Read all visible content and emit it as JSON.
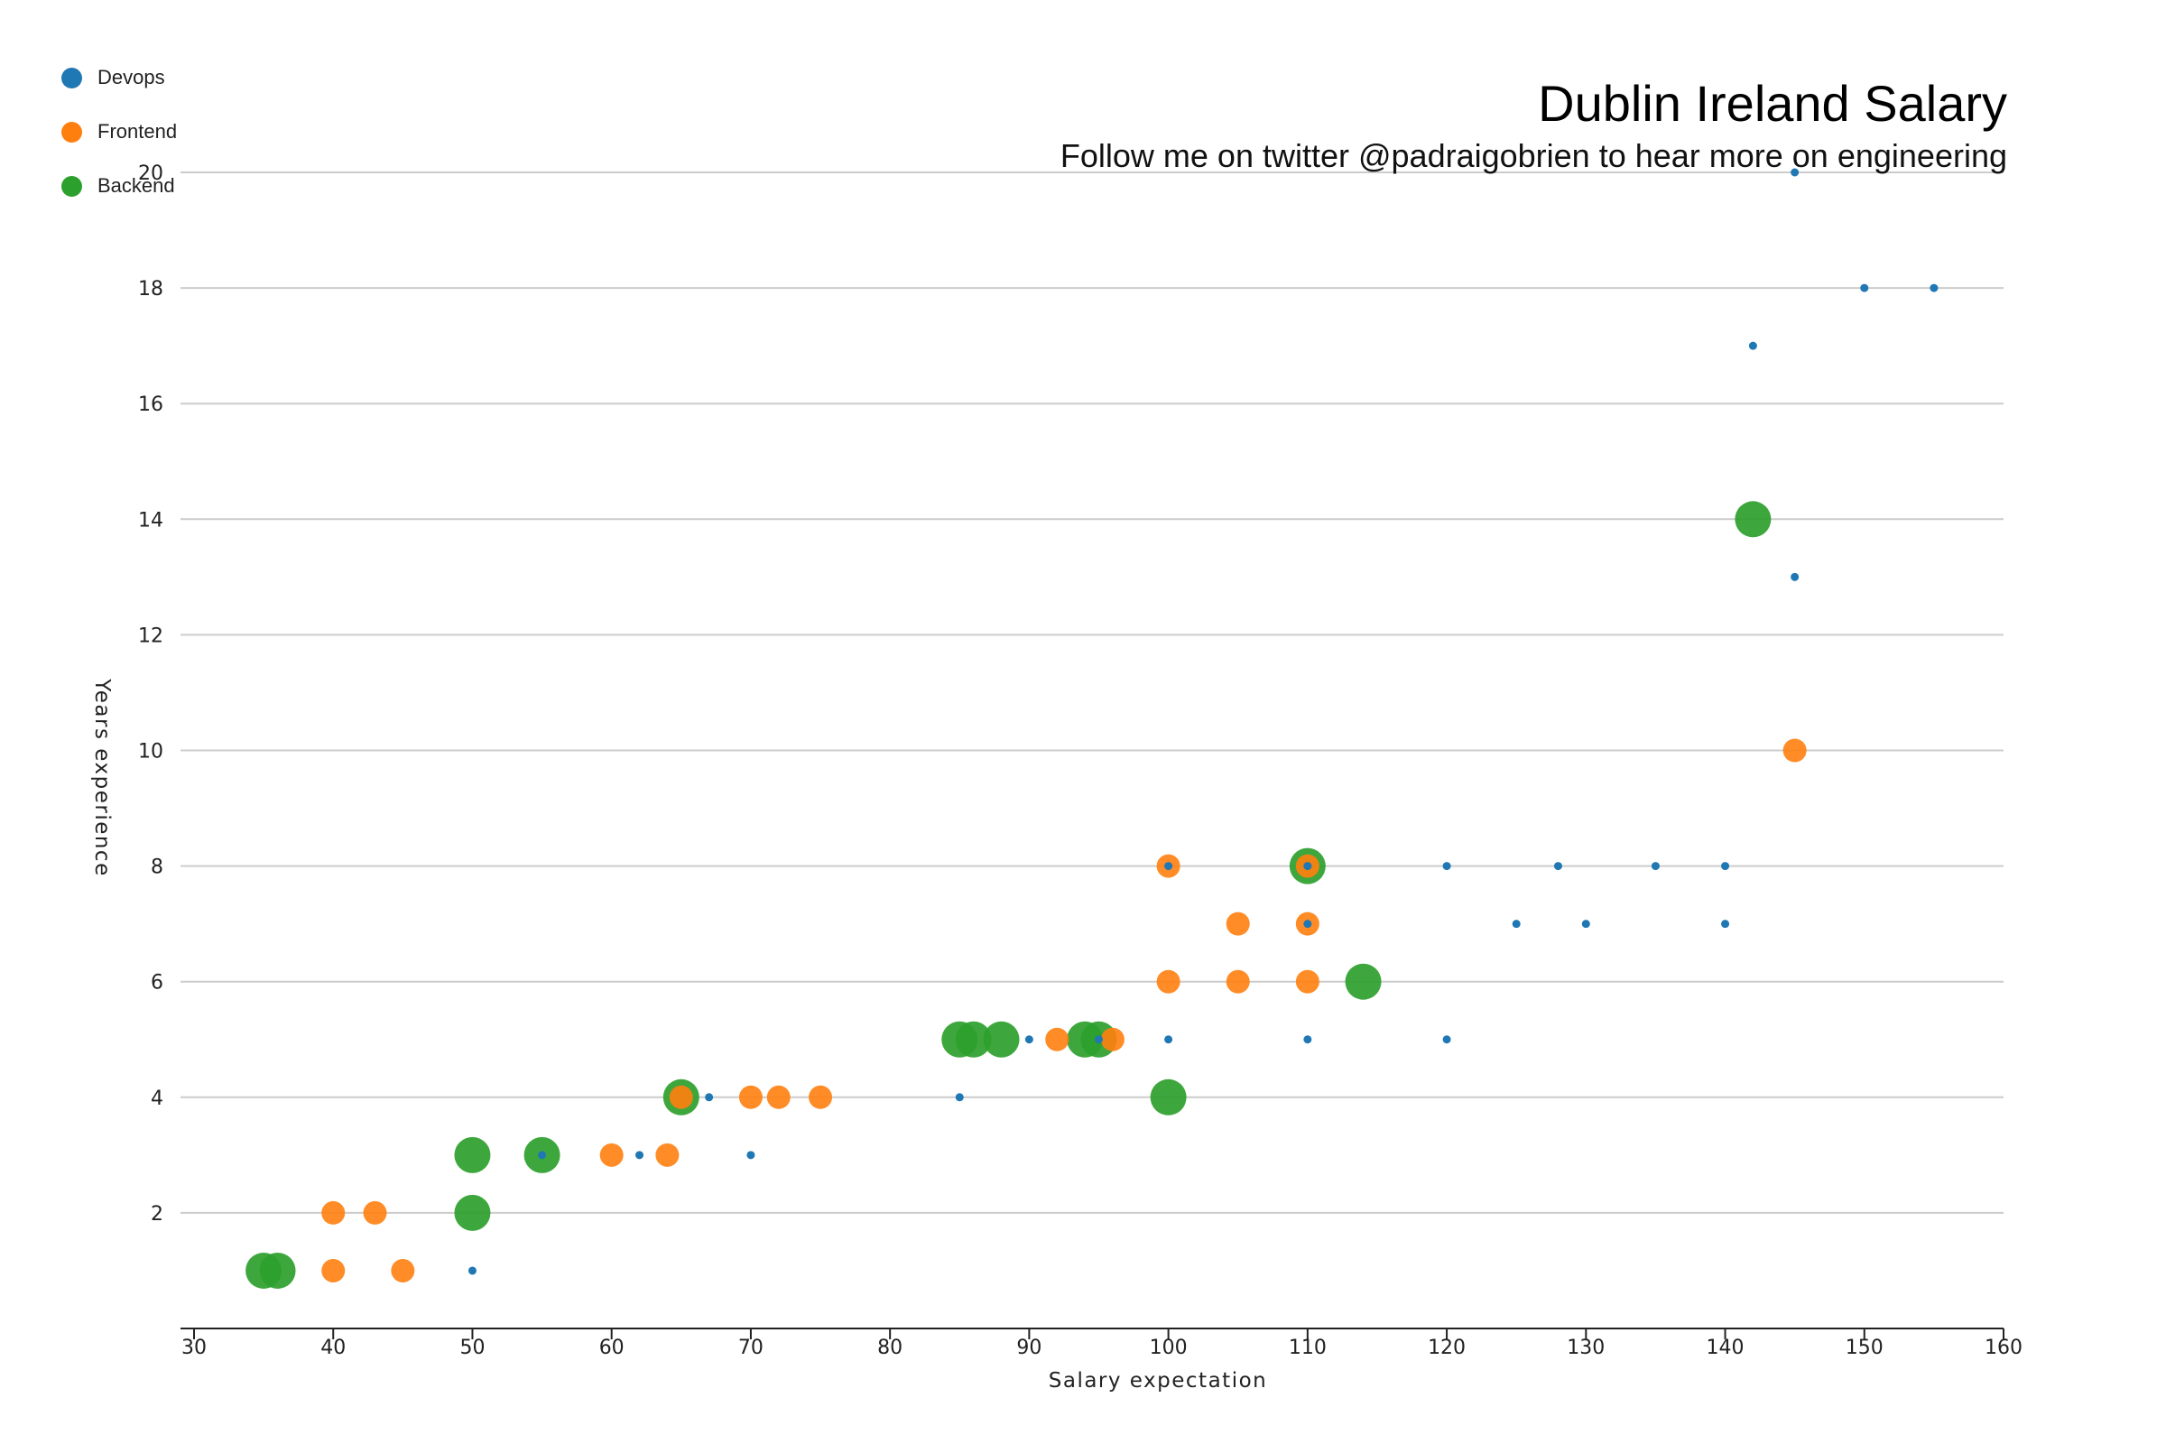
{
  "chart_data": {
    "type": "scatter",
    "title": "Dublin Ireland Salary",
    "subtitle": "Follow me on twitter @padraigobrien to hear more on engineering",
    "xlabel": "Salary expectation",
    "ylabel": "Years experience",
    "xlim": [
      30,
      160
    ],
    "ylim": [
      0,
      20
    ],
    "x_ticks": [
      30,
      40,
      50,
      60,
      70,
      80,
      90,
      100,
      110,
      120,
      130,
      140,
      150,
      160
    ],
    "y_ticks": [
      2,
      4,
      6,
      8,
      10,
      12,
      14,
      16,
      18,
      20
    ],
    "grid": "horizontal",
    "legend": "top-left",
    "series": [
      {
        "name": "Devops",
        "color": "#1f77b4",
        "marker_size": "small",
        "points": [
          [
            145,
            20
          ],
          [
            150,
            18
          ],
          [
            155,
            18
          ],
          [
            142,
            17
          ],
          [
            145,
            13
          ],
          [
            100,
            8
          ],
          [
            110,
            8
          ],
          [
            120,
            8
          ],
          [
            128,
            8
          ],
          [
            135,
            8
          ],
          [
            140,
            8
          ],
          [
            110,
            7
          ],
          [
            125,
            7
          ],
          [
            130,
            7
          ],
          [
            140,
            7
          ],
          [
            90,
            5
          ],
          [
            95,
            5
          ],
          [
            100,
            5
          ],
          [
            110,
            5
          ],
          [
            120,
            5
          ],
          [
            67,
            4
          ],
          [
            85,
            4
          ],
          [
            55,
            3
          ],
          [
            62,
            3
          ],
          [
            70,
            3
          ],
          [
            50,
            1
          ]
        ]
      },
      {
        "name": "Frontend",
        "color": "#ff7f0e",
        "marker_size": "medium",
        "points": [
          [
            145,
            10
          ],
          [
            100,
            8
          ],
          [
            110,
            8
          ],
          [
            105,
            7
          ],
          [
            110,
            7
          ],
          [
            100,
            6
          ],
          [
            105,
            6
          ],
          [
            110,
            6
          ],
          [
            92,
            5
          ],
          [
            96,
            5
          ],
          [
            65,
            4
          ],
          [
            70,
            4
          ],
          [
            72,
            4
          ],
          [
            75,
            4
          ],
          [
            60,
            3
          ],
          [
            64,
            3
          ],
          [
            40,
            2
          ],
          [
            43,
            2
          ],
          [
            40,
            1
          ],
          [
            45,
            1
          ]
        ]
      },
      {
        "name": "Backend",
        "color": "#2ca02c",
        "marker_size": "large",
        "points": [
          [
            142,
            14
          ],
          [
            110,
            8
          ],
          [
            114,
            6
          ],
          [
            85,
            5
          ],
          [
            86,
            5
          ],
          [
            88,
            5
          ],
          [
            94,
            5
          ],
          [
            95,
            5
          ],
          [
            65,
            4
          ],
          [
            100,
            4
          ],
          [
            50,
            3
          ],
          [
            55,
            3
          ],
          [
            50,
            2
          ],
          [
            35,
            1
          ],
          [
            36,
            1
          ]
        ]
      }
    ]
  }
}
